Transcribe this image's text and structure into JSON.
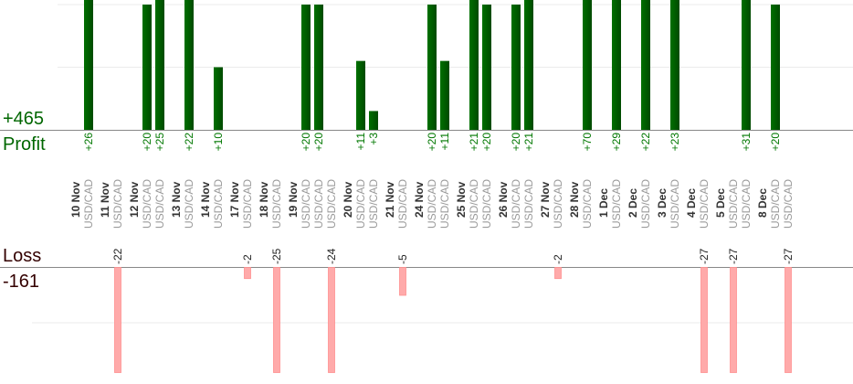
{
  "chart_data": {
    "type": "bar",
    "title": "",
    "profit": {
      "label": "Profit",
      "total": "+465",
      "color": "#006600",
      "gridlines": [
        10,
        20
      ]
    },
    "loss": {
      "label": "Loss",
      "total": "-161",
      "color": "#ffaaaa",
      "gridlines": [
        10
      ]
    },
    "days": [
      {
        "date": "10 Nov",
        "trades": [
          {
            "pair": "USD/CAD",
            "value": 26
          }
        ]
      },
      {
        "date": "11 Nov",
        "trades": [
          {
            "pair": "USD/CAD",
            "value": -22
          }
        ]
      },
      {
        "date": "12 Nov",
        "trades": [
          {
            "pair": "USD/CAD",
            "value": 20
          },
          {
            "pair": "USD/CAD",
            "value": 25
          }
        ]
      },
      {
        "date": "13 Nov",
        "trades": [
          {
            "pair": "USD/CAD",
            "value": 22
          }
        ]
      },
      {
        "date": "14 Nov",
        "trades": [
          {
            "pair": "USD/CAD",
            "value": 10
          }
        ]
      },
      {
        "date": "17 Nov",
        "trades": [
          {
            "pair": "USD/CAD",
            "value": -2
          }
        ]
      },
      {
        "date": "18 Nov",
        "trades": [
          {
            "pair": "USD/CAD",
            "value": -25
          }
        ]
      },
      {
        "date": "19 Nov",
        "trades": [
          {
            "pair": "USD/CAD",
            "value": 20
          },
          {
            "pair": "USD/CAD",
            "value": 20
          },
          {
            "pair": "USD/CAD",
            "value": -24
          }
        ]
      },
      {
        "date": "20 Nov",
        "trades": [
          {
            "pair": "USD/CAD",
            "value": 11
          },
          {
            "pair": "USD/CAD",
            "value": 3
          }
        ]
      },
      {
        "date": "21 Nov",
        "trades": [
          {
            "pair": "USD/CAD",
            "value": -5
          }
        ]
      },
      {
        "date": "24 Nov",
        "trades": [
          {
            "pair": "USD/CAD",
            "value": 20
          },
          {
            "pair": "USD/CAD",
            "value": 11
          }
        ]
      },
      {
        "date": "25 Nov",
        "trades": [
          {
            "pair": "USD/CAD",
            "value": 21
          },
          {
            "pair": "USD/CAD",
            "value": 20
          }
        ]
      },
      {
        "date": "26 Nov",
        "trades": [
          {
            "pair": "USD/CAD",
            "value": 20
          },
          {
            "pair": "USD/CAD",
            "value": 21
          }
        ]
      },
      {
        "date": "27 Nov",
        "trades": [
          {
            "pair": "USD/CAD",
            "value": -2
          }
        ]
      },
      {
        "date": "28 Nov",
        "trades": [
          {
            "pair": "USD/CAD",
            "value": 70
          }
        ]
      },
      {
        "date": "1 Dec",
        "trades": [
          {
            "pair": "USD/CAD",
            "value": 29
          }
        ]
      },
      {
        "date": "2 Dec",
        "trades": [
          {
            "pair": "USD/CAD",
            "value": 22
          }
        ]
      },
      {
        "date": "3 Dec",
        "trades": [
          {
            "pair": "USD/CAD",
            "value": 23
          }
        ]
      },
      {
        "date": "4 Dec",
        "trades": [
          {
            "pair": "USD/CAD",
            "value": -27
          }
        ]
      },
      {
        "date": "5 Dec",
        "trades": [
          {
            "pair": "USD/CAD",
            "value": -27
          },
          {
            "pair": "USD/CAD",
            "value": 31
          }
        ]
      },
      {
        "date": "8 Dec",
        "trades": [
          {
            "pair": "USD/CAD",
            "value": 20
          },
          {
            "pair": "USD/CAD",
            "value": -27
          }
        ]
      }
    ]
  }
}
